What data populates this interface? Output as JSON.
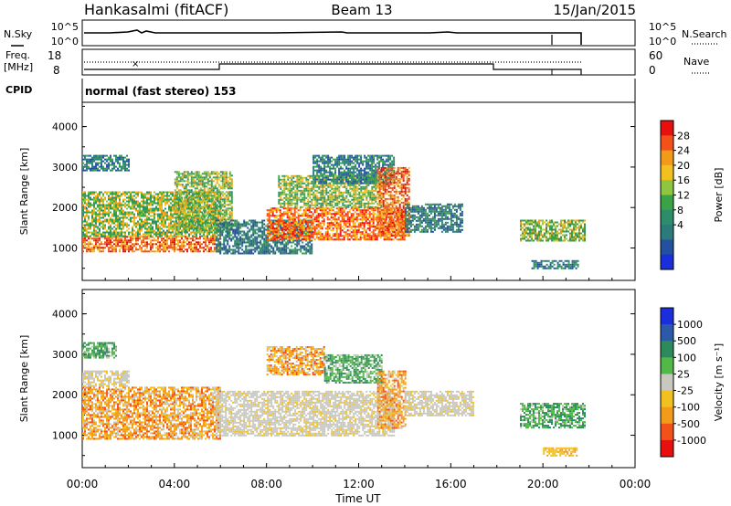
{
  "header": {
    "station": "Hankasalmi (fitACF)",
    "beam": "Beam 13",
    "date": "15/Jan/2015"
  },
  "sky_panel": {
    "left_label": "N.Sky",
    "right_label": "N.Search",
    "tick_top": "10^5",
    "tick_bottom": "10^0",
    "right_tick_top": "10^5",
    "right_tick_bottom": "10^0"
  },
  "freq_panel": {
    "left_label_top": "Freq.",
    "left_label_bottom": "[MHz]",
    "tick_top": "18",
    "tick_bottom": "8",
    "right_label": "Nave",
    "right_tick_top": "60",
    "right_tick_bottom": "0"
  },
  "cpid": {
    "label": "CPID",
    "program": "normal (fast stereo) 153"
  },
  "chart_data": [
    {
      "type": "heatmap",
      "name": "power",
      "ylabel": "Slant Range [km]",
      "xlabel": "Time UT",
      "ylim": [
        200,
        4600
      ],
      "xlim_hours": [
        0,
        24
      ],
      "y_ticks": [
        "1000",
        "2000",
        "3000",
        "4000"
      ],
      "x_ticks": [
        "00:00",
        "04:00",
        "08:00",
        "12:00",
        "16:00",
        "20:00",
        "00:00"
      ],
      "colorbar": {
        "label": "Power [dB]",
        "ticks": [
          "28",
          "24",
          "20",
          "16",
          "12",
          "8",
          "4"
        ],
        "colors": [
          "#e8100f",
          "#f3511a",
          "#f29b1b",
          "#f2c01f",
          "#8ec63f",
          "#3aa348",
          "#2d8c6a",
          "#2b7b7b",
          "#2450a0",
          "#1a2edb"
        ]
      },
      "regions": [
        {
          "t0": 0.0,
          "t1": 6.0,
          "r0": 900,
          "r1": 1300,
          "level": "high"
        },
        {
          "t0": 0.0,
          "t1": 6.0,
          "r0": 1300,
          "r1": 2400,
          "level": "medium"
        },
        {
          "t0": 0.0,
          "t1": 2.0,
          "r0": 2900,
          "r1": 3300,
          "level": "low"
        },
        {
          "t0": 4.0,
          "t1": 6.5,
          "r0": 1400,
          "r1": 2900,
          "level": "medium"
        },
        {
          "t0": 5.8,
          "t1": 10.0,
          "r0": 850,
          "r1": 1700,
          "level": "low"
        },
        {
          "t0": 8.0,
          "t1": 14.0,
          "r0": 1200,
          "r1": 2000,
          "level": "high"
        },
        {
          "t0": 8.5,
          "t1": 13.0,
          "r0": 2000,
          "r1": 2800,
          "level": "medium"
        },
        {
          "t0": 10.0,
          "t1": 13.5,
          "r0": 2600,
          "r1": 3300,
          "level": "low"
        },
        {
          "t0": 12.8,
          "t1": 14.2,
          "r0": 1300,
          "r1": 3000,
          "level": "high"
        },
        {
          "t0": 14.0,
          "t1": 16.5,
          "r0": 1400,
          "r1": 2100,
          "level": "low"
        },
        {
          "t0": 19.0,
          "t1": 21.8,
          "r0": 1200,
          "r1": 1700,
          "level": "medium"
        },
        {
          "t0": 19.5,
          "t1": 21.5,
          "r0": 500,
          "r1": 700,
          "level": "low"
        }
      ]
    },
    {
      "type": "heatmap",
      "name": "velocity",
      "ylabel": "Slant Range [km]",
      "xlabel": "Time UT",
      "ylim": [
        200,
        4600
      ],
      "xlim_hours": [
        0,
        24
      ],
      "y_ticks": [
        "1000",
        "2000",
        "3000",
        "4000"
      ],
      "x_ticks": [
        "00:00",
        "04:00",
        "08:00",
        "12:00",
        "16:00",
        "20:00",
        "00:00"
      ],
      "colorbar": {
        "label": "Velocity [m s⁻¹]",
        "ticks": [
          "1000",
          "500",
          "100",
          "25",
          "-25",
          "-100",
          "-500",
          "-1000"
        ],
        "colors": [
          "#1a2edb",
          "#2b5aa8",
          "#2d8a5c",
          "#52b848",
          "#c8c8c0",
          "#f2c01f",
          "#f29b1b",
          "#f3511a",
          "#e8100f"
        ]
      },
      "regions": [
        {
          "t0": 0.0,
          "t1": 6.0,
          "r0": 900,
          "r1": 2200,
          "level": "-500"
        },
        {
          "t0": 0.0,
          "t1": 2.0,
          "r0": 2200,
          "r1": 2600,
          "level": "25"
        },
        {
          "t0": 0.0,
          "t1": 1.5,
          "r0": 2900,
          "r1": 3300,
          "level": "100"
        },
        {
          "t0": 5.8,
          "t1": 13.5,
          "r0": 1000,
          "r1": 2100,
          "level": "25"
        },
        {
          "t0": 8.0,
          "t1": 10.5,
          "r0": 2500,
          "r1": 3200,
          "level": "-500"
        },
        {
          "t0": 10.5,
          "t1": 13.0,
          "r0": 2300,
          "r1": 3000,
          "level": "100"
        },
        {
          "t0": 12.8,
          "t1": 14.0,
          "r0": 1200,
          "r1": 2600,
          "level": "-500"
        },
        {
          "t0": 14.0,
          "t1": 17.0,
          "r0": 1500,
          "r1": 2100,
          "level": "25"
        },
        {
          "t0": 19.0,
          "t1": 21.8,
          "r0": 1200,
          "r1": 1800,
          "level": "100"
        },
        {
          "t0": 20.0,
          "t1": 21.5,
          "r0": 500,
          "r1": 700,
          "level": "-100"
        }
      ]
    }
  ]
}
